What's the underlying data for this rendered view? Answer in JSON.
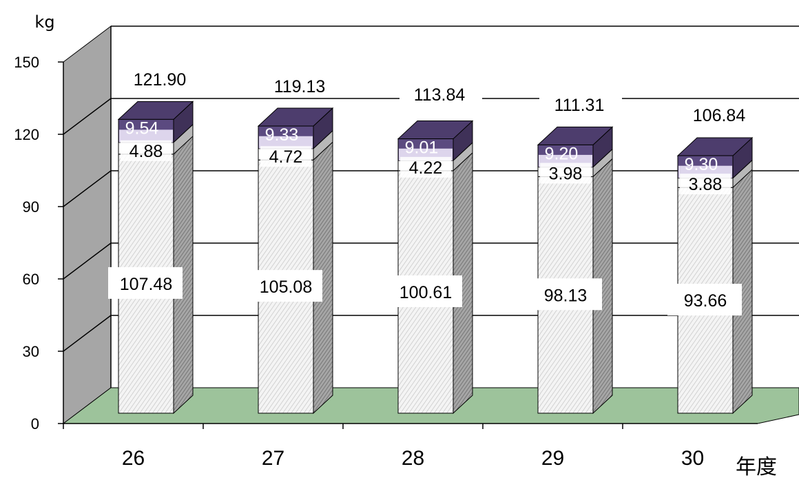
{
  "chart_data": {
    "type": "bar",
    "stacked": true,
    "three_d": true,
    "ylabel": "kg",
    "xlabel": "年度",
    "ylim": [
      0,
      150
    ],
    "yticks": [
      0,
      30,
      60,
      90,
      120,
      150
    ],
    "categories": [
      "26",
      "27",
      "28",
      "29",
      "30"
    ],
    "series": [
      {
        "values": [
          107.48,
          105.08,
          100.61,
          98.13,
          93.66
        ],
        "color": "#f2f2f2"
      },
      {
        "values": [
          4.88,
          4.72,
          4.22,
          3.98,
          3.88
        ],
        "color": "#ffffff"
      },
      {
        "values": [
          9.54,
          9.33,
          9.01,
          9.2,
          9.3
        ],
        "color": "#5b4a80"
      }
    ],
    "totals": [
      "121.90",
      "119.13",
      "113.84",
      "111.31",
      "106.84"
    ],
    "segment_labels": [
      [
        "107.48",
        "105.08",
        "100.61",
        "98.13",
        "93.66"
      ],
      [
        "4.88",
        "4.72",
        "4.22",
        "3.98",
        "3.88"
      ],
      [
        "9.54",
        "9.33",
        "9.01",
        "9.20",
        "9.30"
      ]
    ],
    "grid": true,
    "legend": "none",
    "colors": {
      "floor": "#9dc39b",
      "wall": "#a6a6a6",
      "top_segment": "#5b4a80",
      "band": "#ddd5ec"
    }
  }
}
